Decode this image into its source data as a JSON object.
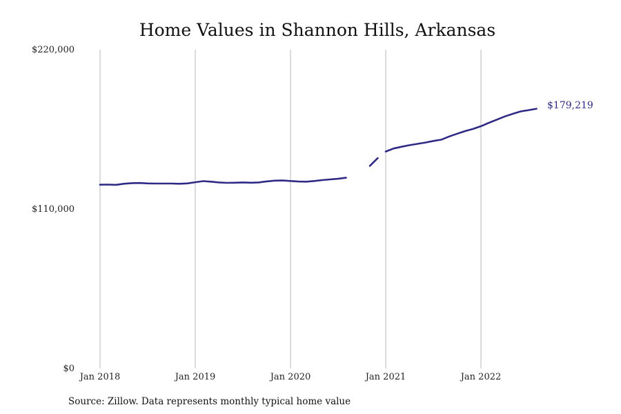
{
  "chart_data": {
    "type": "line",
    "title": "Home Values in Shannon Hills, Arkansas",
    "xlabel": "",
    "ylabel": "",
    "x_tick_labels": [
      "Jan 2018",
      "Jan 2019",
      "Jan 2020",
      "Jan 2021",
      "Jan 2022"
    ],
    "x_ticks": [
      "2018-01",
      "2019-01",
      "2020-01",
      "2021-01",
      "2022-01"
    ],
    "y_tick_labels": [
      "$220,000",
      "$110,000",
      "$0"
    ],
    "y_ticks": [
      220000,
      110000,
      0
    ],
    "ylim": [
      0,
      220000
    ],
    "grid": "vertical",
    "line_color": "#2E2A85",
    "end_label": "$179,219",
    "source": "Source: Zillow. Data represents monthly typical home value",
    "series": [
      {
        "segments": [
          {
            "x": [
              "2018-01",
              "2018-02",
              "2018-03",
              "2018-04",
              "2018-05",
              "2018-06",
              "2018-07",
              "2018-08",
              "2018-09",
              "2018-10",
              "2018-11",
              "2018-12",
              "2019-01",
              "2019-02",
              "2019-03",
              "2019-04",
              "2019-05",
              "2019-06",
              "2019-07",
              "2019-08",
              "2019-09",
              "2019-10",
              "2019-11",
              "2019-12",
              "2020-01",
              "2020-02",
              "2020-03",
              "2020-04",
              "2020-05",
              "2020-06",
              "2020-07",
              "2020-08"
            ],
            "y": [
              126800,
              126900,
              126700,
              127500,
              127900,
              128000,
              127700,
              127600,
              127600,
              127600,
              127500,
              127700,
              128500,
              129300,
              128900,
              128400,
              128100,
              128200,
              128400,
              128200,
              128400,
              129100,
              129600,
              129700,
              129400,
              129000,
              128900,
              129400,
              130000,
              130500,
              130900,
              131600
            ]
          },
          {
            "x": [
              "2020-11",
              "2020-12"
            ],
            "y": [
              139800,
              145200
            ]
          },
          {
            "x": [
              "2021-01",
              "2021-02",
              "2021-03",
              "2021-04",
              "2021-05",
              "2021-06",
              "2021-07",
              "2021-08",
              "2021-09",
              "2021-10",
              "2021-11",
              "2021-12",
              "2022-01",
              "2022-02",
              "2022-03",
              "2022-04",
              "2022-05",
              "2022-06",
              "2022-07",
              "2022-08"
            ],
            "y": [
              149700,
              151800,
              153000,
              154100,
              155000,
              155900,
              157000,
              157900,
              160100,
              162000,
              163800,
              165300,
              167200,
              169500,
              171700,
              173900,
              175700,
              177400,
              178300,
              179219
            ]
          }
        ]
      }
    ]
  }
}
